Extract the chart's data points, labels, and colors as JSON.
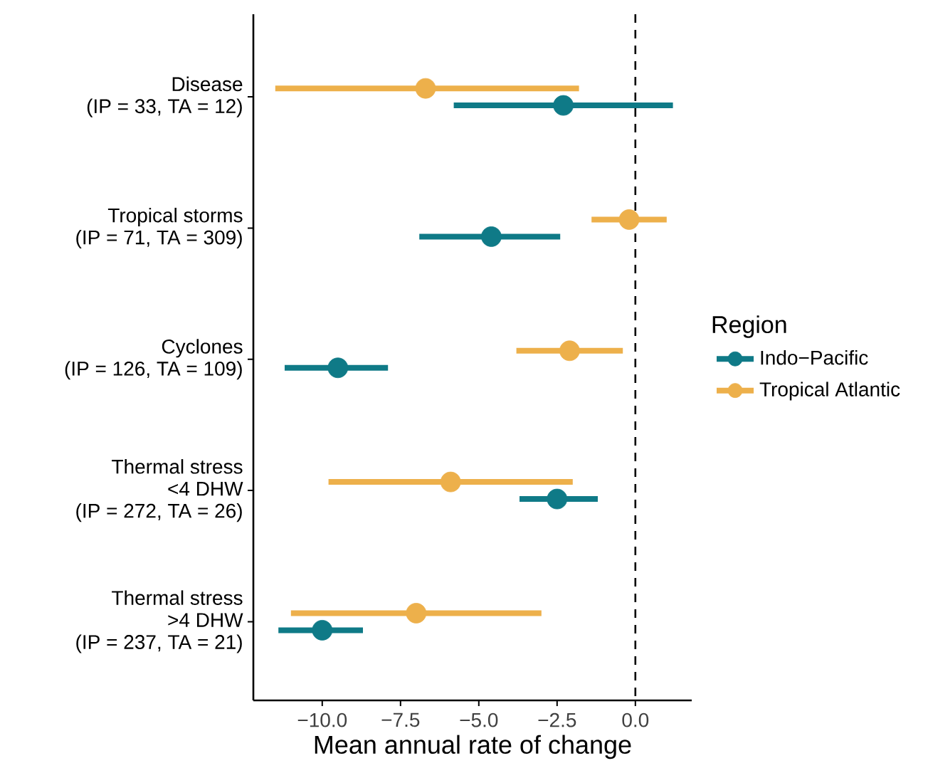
{
  "chart_data": {
    "type": "scatter",
    "orientation": "horizontal",
    "xlabel": "Mean annual rate of change",
    "legend_title": "Region",
    "categories": [
      "Disease\n(IP = 33, TA = 12)",
      "Tropical storms\n(IP = 71, TA = 309)",
      "Cyclones\n(IP = 126, TA = 109)",
      "Thermal stress\n<4 DHW\n(IP = 272, TA = 26)",
      "Thermal stress\n>4 DHW\n(IP = 237, TA = 21)"
    ],
    "series": [
      {
        "name": "Indo−Pacific",
        "color": "#0f7a87",
        "values": [
          -2.3,
          -4.6,
          -9.5,
          -2.5,
          -10.0
        ],
        "errors": [
          [
            -5.8,
            1.2
          ],
          [
            -6.9,
            -2.4
          ],
          [
            -11.2,
            -7.9
          ],
          [
            -3.7,
            -1.2
          ],
          [
            -11.4,
            -8.7
          ]
        ]
      },
      {
        "name": "Tropical Atlantic",
        "color": "#edb04b",
        "values": [
          -6.7,
          -0.2,
          -2.1,
          -5.9,
          -7.0
        ],
        "errors": [
          [
            -11.5,
            -1.8
          ],
          [
            -1.4,
            1.0
          ],
          [
            -3.8,
            -0.4
          ],
          [
            -9.8,
            -2.0
          ],
          [
            -11.0,
            -3.0
          ]
        ]
      }
    ],
    "xlim": [
      -12.2,
      1.8
    ],
    "xticks": [
      {
        "value": -10,
        "label": "−10.0"
      },
      {
        "value": -7.5,
        "label": "−7.5"
      },
      {
        "value": -5,
        "label": "−5.0"
      },
      {
        "value": -2.5,
        "label": "−2.5"
      },
      {
        "value": 0,
        "label": "0.0"
      }
    ],
    "ref_lines": [
      {
        "axis": "x",
        "value": 0,
        "line_style": "dashed",
        "color": "#000000"
      }
    ],
    "marker": "circle",
    "legend": "right",
    "grid": false
  }
}
